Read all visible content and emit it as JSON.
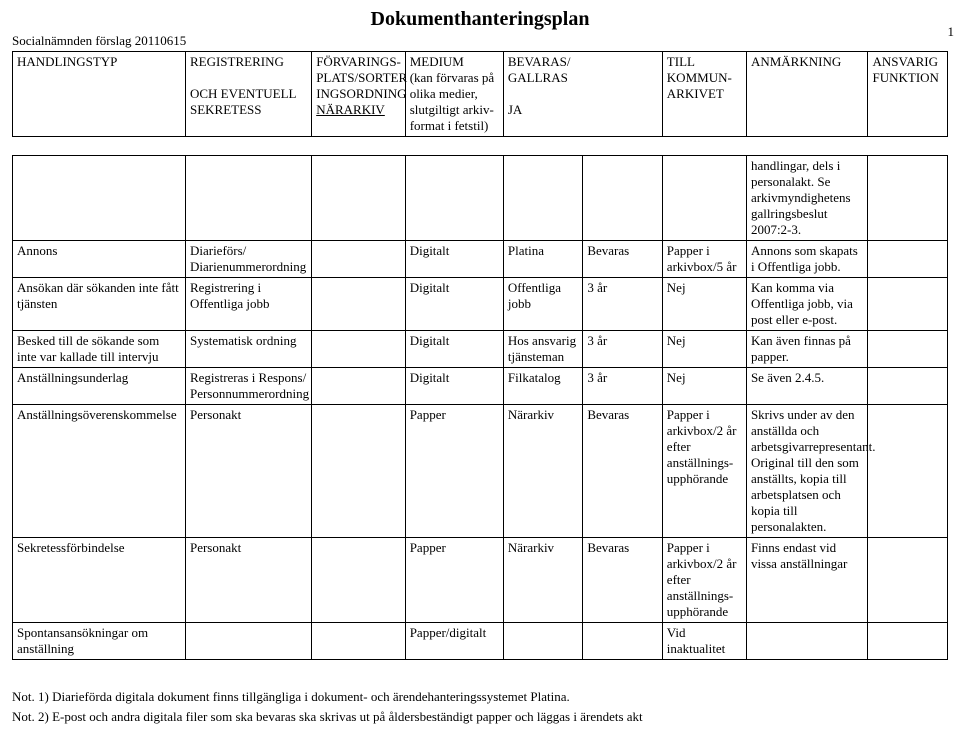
{
  "title": "Dokumenthanteringsplan",
  "subheader": "Socialnämnden förslag 20110615",
  "pageNumber": "1",
  "headers": {
    "c1": "HANDLINGSTYP",
    "c2_l1": "REGISTRERING",
    "c2_l2": "OCH EVENTUELL",
    "c2_l3": "SEKRETESS",
    "c3_l1": "FÖRVARINGS-",
    "c3_l2": "PLATS/SORTER",
    "c3_l3": "INGSORDNING",
    "c3_l4": "NÄRARKIV",
    "c4_l1": "MEDIUM",
    "c4_l2": "(kan förvaras på",
    "c4_l3": "olika medier,",
    "c4_l4": "slutgiltigt arkiv-",
    "c4_l5": "format i fetstil)",
    "c5_l1": "BEVARAS/",
    "c5_l2": "GALLRAS",
    "c6": "JA",
    "c7_l1": "TILL",
    "c7_l2": "KOMMUN-",
    "c7_l3": "ARKIVET",
    "c8": "ANMÄRKNING",
    "c9_l1": "ANSVARIG",
    "c9_l2": "FUNKTION"
  },
  "rows": [
    {
      "c1": "",
      "c2": "",
      "c3": "",
      "c4": "",
      "c5": "",
      "c6": "",
      "c7": "",
      "c8": "handlingar, dels i personalakt. Se arkivmyndighetens gallringsbeslut 2007:2-3.",
      "c9": ""
    },
    {
      "c1": "Annons",
      "c2": "Diarieförs/ Diarienummerordning",
      "c3": "",
      "c4": "Digitalt",
      "c5": "Platina",
      "c6": "Bevaras",
      "c7": "Papper i arkivbox/5 år",
      "c8": "Annons som skapats i Offentliga jobb.",
      "c9": ""
    },
    {
      "c1": "Ansökan där sökanden inte fått tjänsten",
      "c2": "Registrering i Offentliga jobb",
      "c3": "",
      "c4": "Digitalt",
      "c5": "Offentliga jobb",
      "c6": "3 år",
      "c7": "Nej",
      "c8": "Kan komma via Offentliga jobb, via post eller e-post.",
      "c9": ""
    },
    {
      "c1": "Besked till de sökande som inte var kallade till intervju",
      "c2": "Systematisk ordning",
      "c3": "",
      "c4": "Digitalt",
      "c5": "Hos ansvarig tjänsteman",
      "c6": "3 år",
      "c7": "Nej",
      "c8": "Kan även finnas på papper.",
      "c9": ""
    },
    {
      "c1": "Anställningsunderlag",
      "c2": "Registreras i Respons/ Personnummerordning",
      "c3": "",
      "c4": "Digitalt",
      "c5": "Filkatalog",
      "c6": "3 år",
      "c7": "Nej",
      "c8": "Se även 2.4.5.",
      "c9": ""
    },
    {
      "c1": "Anställningsöverenskommelse",
      "c2": "Personakt",
      "c3": "",
      "c4": "Papper",
      "c5": "Närarkiv",
      "c6": "Bevaras",
      "c7": "Papper i arkivbox/2 år efter anställnings-upphörande",
      "c8": "Skrivs under av den anställda och arbetsgivarrepresentant. Original till den som anställts, kopia till arbetsplatsen och kopia till personalakten.",
      "c9": ""
    },
    {
      "c1": "Sekretessförbindelse",
      "c2": "Personakt",
      "c3": "",
      "c4": "Papper",
      "c5": "Närarkiv",
      "c6": "Bevaras",
      "c7": "Papper i arkivbox/2 år efter anställnings-upphörande",
      "c8": "Finns endast vid vissa anställningar",
      "c9": ""
    },
    {
      "c1": "Spontansansökningar om anställning",
      "c2": "",
      "c3": "",
      "c4": "Papper/digitalt",
      "c5": "",
      "c6": "",
      "c7": "Vid inaktualitet",
      "c8": "",
      "c9": ""
    }
  ],
  "notes": {
    "n1": "Not. 1)  Diarieförda digitala dokument finns tillgängliga i dokument- och ärendehanteringssystemet Platina.",
    "n2": "Not. 2)  E-post och andra digitala filer som ska bevaras ska skrivas ut på åldersbeständigt papper och läggas i ärendets akt"
  }
}
